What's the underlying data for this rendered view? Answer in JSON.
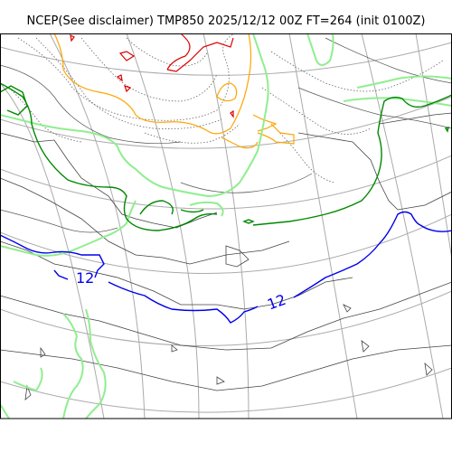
{
  "title": "NCEP(See disclaimer) TMP850 2025/12/12 00Z FT=264 (init 0100Z)",
  "contour_labels": [
    "12",
    "12"
  ],
  "colors": {
    "background": "#ffffff",
    "graticule": "#aaaaaa",
    "coast": "#444444",
    "isotherm_thin": "#555555",
    "isotherm_dotted": "#666666",
    "contour_red": "#dd0000",
    "contour_orange": "#ffa500",
    "contour_light_green": "#90ee90",
    "contour_dark_green": "#008800",
    "contour_blue": "#0000ee",
    "frame": "#000000"
  }
}
